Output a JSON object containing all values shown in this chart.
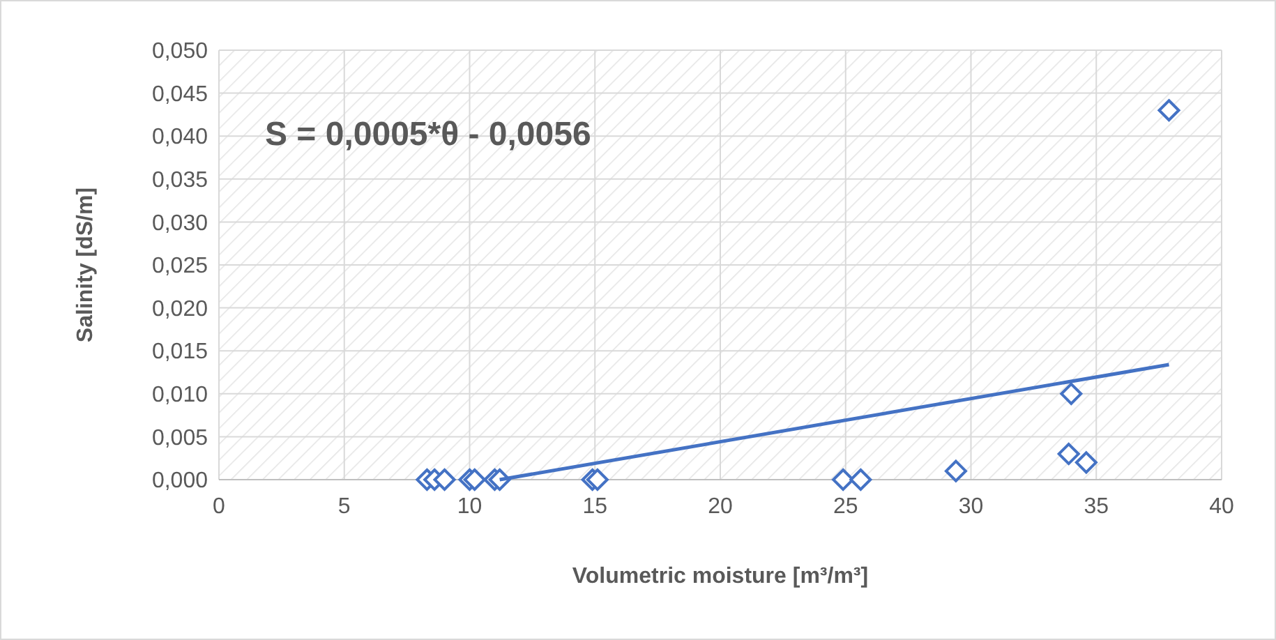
{
  "chart_data": {
    "type": "scatter",
    "xlabel": "Volumetric moisture [m³/m³]",
    "ylabel": "Salinity [dS/m]",
    "annotations": [
      "S = 0,0005*θ - 0,0056"
    ],
    "xlim": [
      0,
      40
    ],
    "xticks": [
      0,
      5,
      10,
      15,
      20,
      25,
      30,
      35,
      40
    ],
    "ylim": [
      0,
      0.05
    ],
    "yticks": [
      {
        "value": 0,
        "label": "0,000"
      },
      {
        "value": 0.005,
        "label": "0,005"
      },
      {
        "value": 0.01,
        "label": "0,010"
      },
      {
        "value": 0.015,
        "label": "0,015"
      },
      {
        "value": 0.02,
        "label": "0,020"
      },
      {
        "value": 0.025,
        "label": "0,025"
      },
      {
        "value": 0.03,
        "label": "0,030"
      },
      {
        "value": 0.035,
        "label": "0,035"
      },
      {
        "value": 0.04,
        "label": "0,040"
      },
      {
        "value": 0.045,
        "label": "0,045"
      },
      {
        "value": 0.05,
        "label": "0,050"
      }
    ],
    "grid": true,
    "marker": "diamond",
    "series": [
      {
        "color": "#4472c4",
        "x": [
          8.3,
          8.6,
          9.0,
          10.0,
          10.2,
          11.0,
          11.2,
          14.9,
          15.1,
          24.9,
          25.6,
          29.4,
          33.9,
          34.0,
          34.6,
          37.9
        ],
        "values": [
          0,
          0,
          0,
          0,
          0,
          0,
          0,
          0,
          0,
          0,
          0,
          0.001,
          0.003,
          0.01,
          0.002,
          0.043
        ]
      },
      {
        "type": "line",
        "color": "#4472c4",
        "x": [
          11.2,
          37.9
        ],
        "values": [
          0,
          0.0134
        ],
        "marker": "none",
        "line_style": "solid"
      }
    ]
  }
}
